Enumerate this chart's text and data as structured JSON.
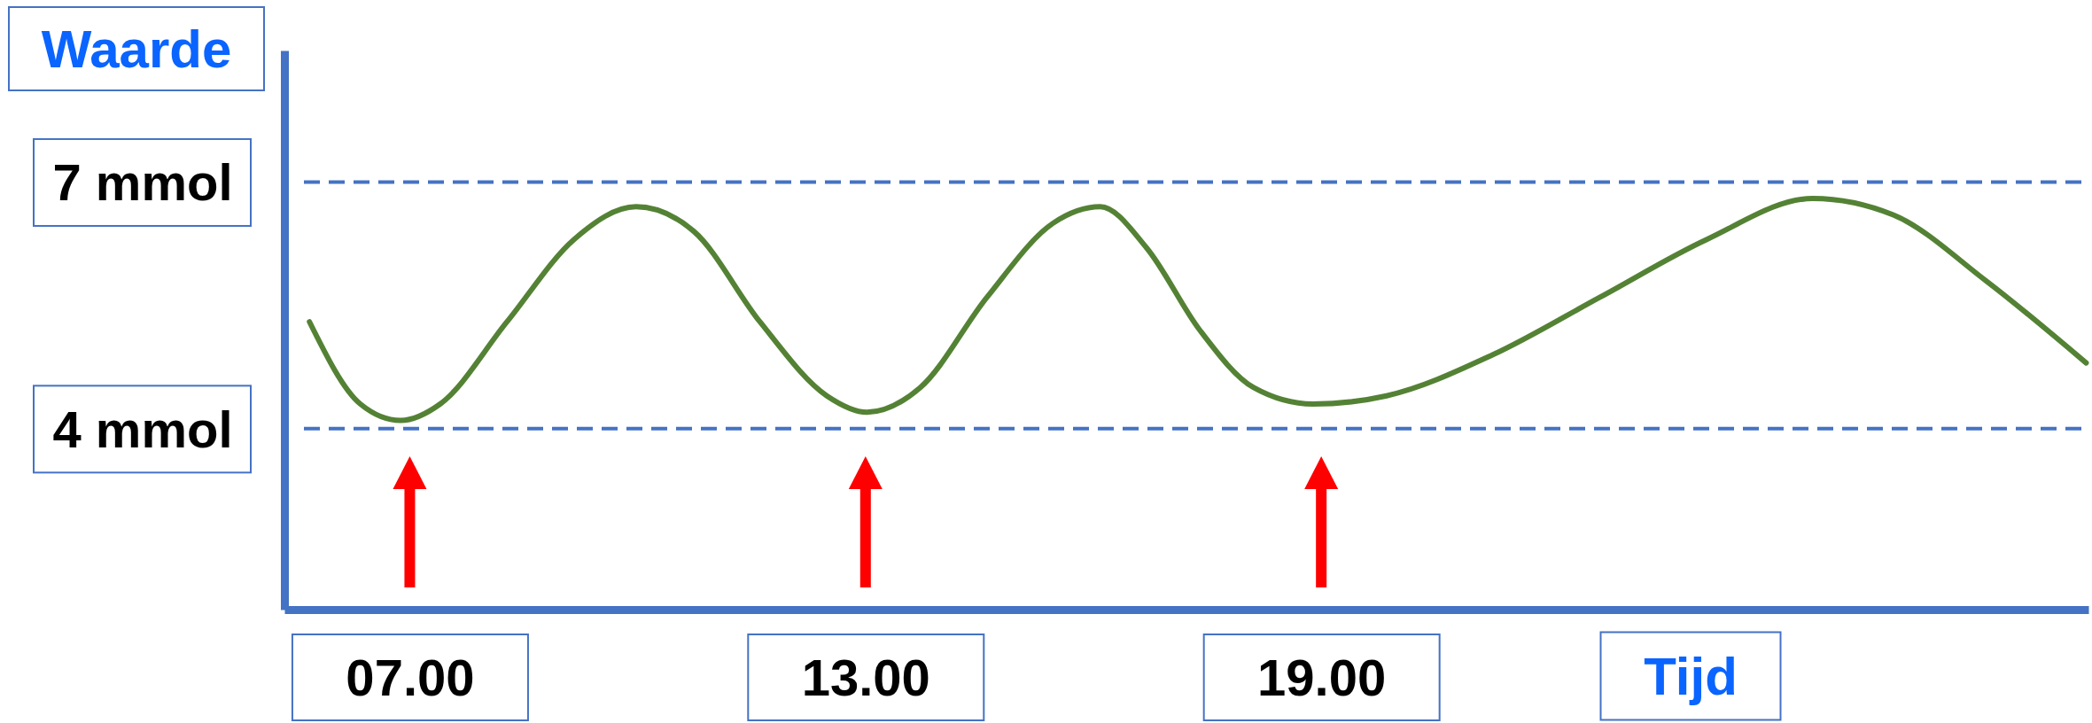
{
  "chart_data": {
    "type": "line",
    "xlabel": "Tijd",
    "ylabel": "Waarde",
    "x": [
      5.68,
      6.35,
      6.88,
      7.4,
      8.28,
      9.16,
      9.98,
      10.74,
      11.61,
      12.49,
      13.02,
      13.72,
      14.6,
      15.47,
      16.09,
      16.7,
      17.4,
      18.11,
      18.89,
      19.86,
      21.26,
      22.67,
      24.07,
      25.47,
      26.53,
      27.75,
      29.07
    ],
    "series": [
      {
        "color": "#548235",
        "values": [
          5.3,
          4.3,
          4.1,
          4.3,
          5.3,
          6.3,
          6.7,
          6.4,
          5.3,
          4.4,
          4.2,
          4.5,
          5.6,
          6.5,
          6.7,
          6.2,
          5.2,
          4.5,
          4.3,
          4.4,
          4.9,
          5.6,
          6.3,
          6.8,
          6.6,
          5.8,
          4.8
        ]
      }
    ],
    "xlim": [
      5.35,
      29.1
    ],
    "ylim": [
      1.8,
      8.6
    ],
    "xticks": [
      {
        "value": 7,
        "label": "07.00"
      },
      {
        "value": 13,
        "label": "13.00"
      },
      {
        "value": 19,
        "label": "19.00"
      }
    ],
    "yticks": [
      {
        "value": 4,
        "label": "4 mmol"
      },
      {
        "value": 7,
        "label": "7 mmol"
      }
    ],
    "ref_lines": [
      {
        "axis": "y",
        "value": 7,
        "color": "#4472c4",
        "line_style": "dashed"
      },
      {
        "axis": "y",
        "value": 4,
        "color": "#4472c4",
        "line_style": "dashed"
      }
    ],
    "marker": "none",
    "line_style": "solid"
  }
}
